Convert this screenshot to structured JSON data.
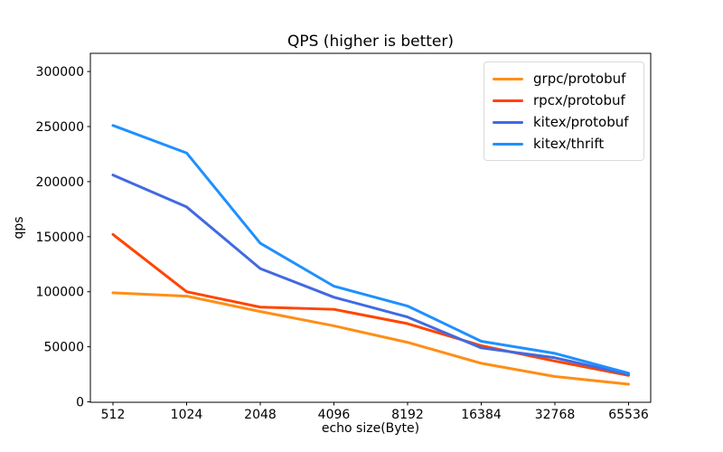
{
  "figure": {
    "title": "QPS (higher is better)",
    "xlabel": "echo size(Byte)",
    "ylabel": "qps"
  },
  "chart_data": {
    "type": "line",
    "title": "QPS (higher is better)",
    "xlabel": "echo size(Byte)",
    "ylabel": "qps",
    "categories": [
      "512",
      "1024",
      "2048",
      "4096",
      "8192",
      "16384",
      "32768",
      "65536"
    ],
    "y_ticks": [
      0,
      50000,
      100000,
      150000,
      200000,
      250000,
      300000
    ],
    "ylim": [
      0,
      316000
    ],
    "grid": false,
    "legend_position": "upper right",
    "series": [
      {
        "name": "grpc/protobuf",
        "color": "#ff8e16",
        "values": [
          99000,
          96000,
          82000,
          69000,
          54000,
          35000,
          23000,
          16000
        ]
      },
      {
        "name": "rpcx/protobuf",
        "color": "#ff4500",
        "values": [
          152000,
          100000,
          86000,
          84000,
          71000,
          51000,
          37000,
          24000
        ]
      },
      {
        "name": "kitex/protobuf",
        "color": "#4169e1",
        "values": [
          206000,
          177000,
          121000,
          95000,
          77000,
          49000,
          40000,
          25000
        ]
      },
      {
        "name": "kitex/thrift",
        "color": "#1e90ff",
        "values": [
          251000,
          226000,
          144000,
          105000,
          87000,
          55000,
          44000,
          26000
        ]
      }
    ]
  }
}
